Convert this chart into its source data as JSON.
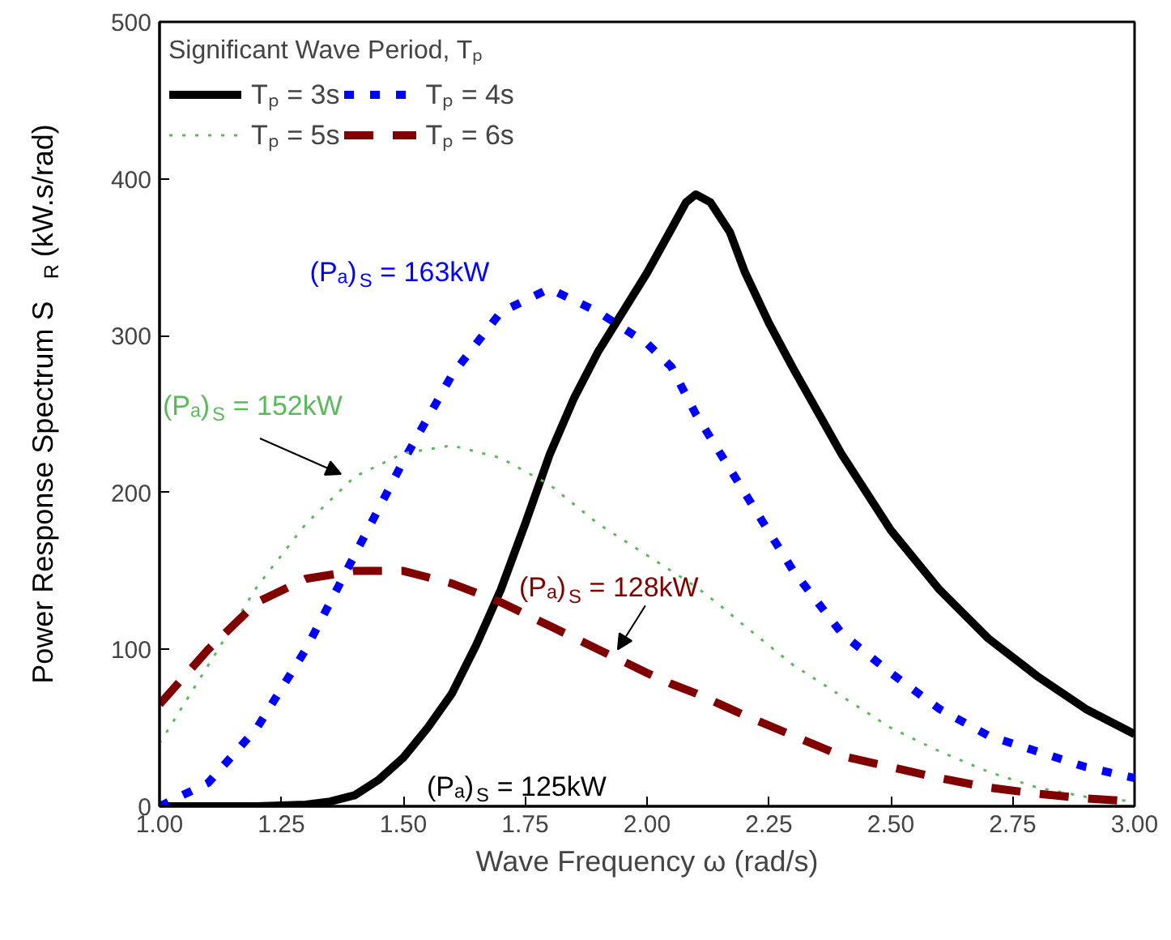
{
  "chart_data": {
    "type": "line",
    "xlabel": "Wave Frequency ω (rad/s)",
    "ylabel": "Power Response Spectrum S$_{R}$ (kW.s/rad)",
    "legend_title": "Significant Wave Period, Tₚ",
    "x": [
      1.0,
      1.1,
      1.2,
      1.3,
      1.4,
      1.5,
      1.6,
      1.7,
      1.8,
      1.9,
      2.0,
      2.05,
      2.1,
      2.15,
      2.2,
      2.3,
      2.4,
      2.5,
      2.6,
      2.7,
      2.8,
      2.9,
      3.0
    ],
    "series": [
      {
        "name": "Tₚ = 3s",
        "color": "#000000",
        "line_style": "solid",
        "x": [
          1.0,
          1.1,
          1.2,
          1.3,
          1.35,
          1.4,
          1.45,
          1.5,
          1.55,
          1.6,
          1.65,
          1.7,
          1.75,
          1.8,
          1.85,
          1.9,
          1.95,
          2.0,
          2.05,
          2.08,
          2.1,
          2.13,
          2.17,
          2.2,
          2.25,
          2.3,
          2.4,
          2.5,
          2.6,
          2.7,
          2.8,
          2.9,
          3.0
        ],
        "values": [
          0,
          0,
          0,
          1,
          3,
          7,
          17,
          31,
          50,
          72,
          103,
          138,
          180,
          224,
          260,
          290,
          315,
          340,
          368,
          385,
          390,
          385,
          366,
          341,
          308,
          279,
          224,
          176,
          138,
          107,
          83,
          62,
          46
        ]
      },
      {
        "name": "Tₚ = 4s",
        "color": "#0000ff",
        "line_style": "dotted",
        "values": [
          0,
          15,
          50,
          100,
          160,
          220,
          275,
          315,
          330,
          315,
          295,
          280,
          250,
          225,
          200,
          150,
          110,
          85,
          62,
          45,
          35,
          25,
          18
        ]
      },
      {
        "name": "Tₚ = 5s",
        "color": "#5cb85c",
        "line_style": "dotted",
        "values": [
          40,
          90,
          140,
          180,
          210,
          225,
          230,
          222,
          205,
          180,
          160,
          150,
          140,
          128,
          115,
          90,
          70,
          50,
          35,
          22,
          12,
          6,
          3
        ]
      },
      {
        "name": "Tₚ = 6s",
        "color": "#800000",
        "line_style": "dashed",
        "values": [
          65,
          100,
          130,
          145,
          150,
          150,
          142,
          130,
          115,
          100,
          85,
          78,
          72,
          65,
          58,
          45,
          32,
          25,
          18,
          12,
          8,
          5,
          3
        ]
      }
    ],
    "annotations": [
      "(Pₐ)$_{S}$ = 125kW",
      {
        "text": "(Pₐ)$_{S}$ = 163kW",
        "x": 1.8,
        "y": 330
      },
      "(Pₐ)$_{S}$ = 152kW",
      {
        "text": "(Pₐ)$_{S}$ = 128kW",
        "x": 1.94,
        "y": 100
      }
    ],
    "xlim": [
      1.0,
      3.0
    ],
    "ylim": [
      0,
      500
    ],
    "xticks": [
      {
        "value": 1.0,
        "label": "1.00"
      },
      {
        "value": 1.25,
        "label": "1.25"
      },
      {
        "value": 1.5,
        "label": "1.50"
      },
      {
        "value": 1.75,
        "label": "1.75"
      },
      {
        "value": 2.0,
        "label": "2.00"
      },
      {
        "value": 2.25,
        "label": "2.25"
      },
      {
        "value": 2.5,
        "label": "2.50"
      },
      {
        "value": 2.75,
        "label": "2.75"
      },
      {
        "value": 3.0,
        "label": "3.00"
      }
    ],
    "yticks": [
      0,
      100,
      200,
      300,
      400,
      500
    ],
    "grid": false,
    "legend": "top left",
    "marker": "none"
  }
}
